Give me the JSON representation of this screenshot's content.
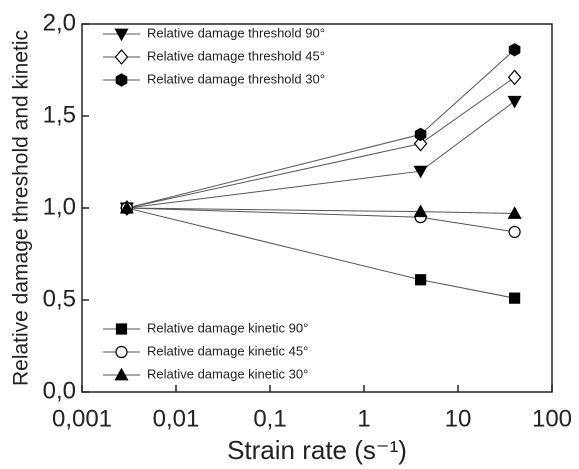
{
  "chart_data": {
    "type": "line",
    "xlabel": "Strain rate (s⁻¹)",
    "ylabel": "Relative damage threshold and kinetic",
    "xscale": "log",
    "xlim": [
      0.001,
      100
    ],
    "ylim": [
      0,
      2
    ],
    "xticks": [
      {
        "value": 0.001,
        "label": "0,001"
      },
      {
        "value": 0.01,
        "label": "0,01"
      },
      {
        "value": 0.1,
        "label": "0,1"
      },
      1,
      10,
      100
    ],
    "yticks": [
      {
        "value": 0,
        "label": "0,0"
      },
      {
        "value": 0.5,
        "label": "0,5"
      },
      {
        "value": 1,
        "label": "1,0"
      },
      {
        "value": 1.5,
        "label": "1,5"
      },
      {
        "value": 2,
        "label": "2,0"
      }
    ],
    "x": [
      0.003,
      4,
      40
    ],
    "series": [
      {
        "name": "Relative damage threshold 90°",
        "color": "#000000",
        "marker": "triangle-down",
        "legend": "upper left",
        "values": [
          1.0,
          1.2,
          1.58
        ]
      },
      {
        "name": "Relative damage threshold 45°",
        "color": "#000000",
        "marker": "diamond-open",
        "legend": "upper left",
        "values": [
          1.0,
          1.35,
          1.71
        ]
      },
      {
        "name": "Relative damage threshold 30°",
        "color": "#000000",
        "marker": "hexagon",
        "legend": "upper left",
        "values": [
          1.0,
          1.4,
          1.86
        ]
      },
      {
        "name": "Relative damage kinetic 90°",
        "color": "#000000",
        "marker": "square",
        "legend": "lower left",
        "values": [
          1.0,
          0.61,
          0.51
        ]
      },
      {
        "name": "Relative damage kinetic 45°",
        "color": "#000000",
        "marker": "circle-open",
        "legend": "lower left",
        "values": [
          1.0,
          0.95,
          0.87
        ]
      },
      {
        "name": "Relative damage kinetic 30°",
        "color": "#000000",
        "marker": "triangle-up",
        "legend": "lower left",
        "values": [
          1.0,
          0.98,
          0.97
        ]
      }
    ]
  }
}
